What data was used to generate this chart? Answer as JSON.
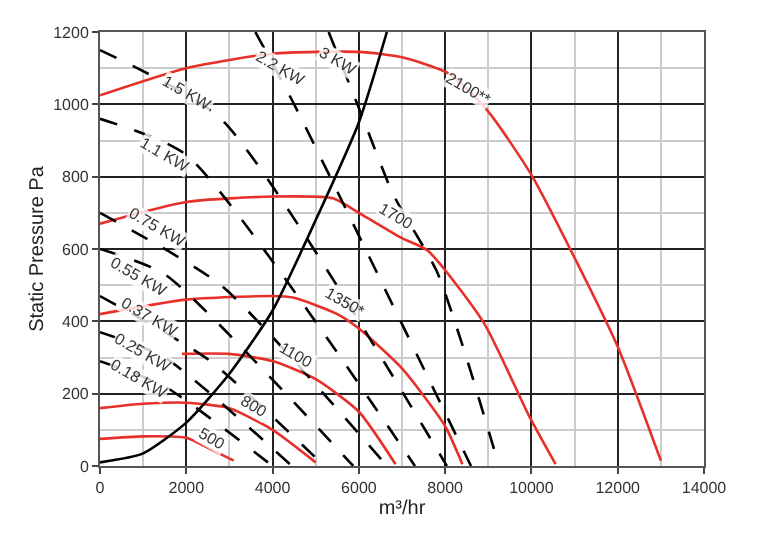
{
  "chart_data": {
    "type": "line",
    "xlabel": "m³/hr",
    "ylabel": "Static Pressure Pa",
    "xlim": [
      0,
      14000
    ],
    "ylim": [
      0,
      1200
    ],
    "xticks": [
      0,
      2000,
      4000,
      6000,
      8000,
      10000,
      12000,
      14000
    ],
    "yticks": [
      0,
      200,
      400,
      600,
      800,
      1000,
      1200
    ],
    "grid": true,
    "marker": "none",
    "series": [
      {
        "color": "#e8302a",
        "line_style": "solid",
        "x": [
          0,
          1000,
          2000,
          2500,
          3100
        ],
        "values": [
          75,
          82,
          78,
          50,
          15
        ]
      },
      {
        "color": "#e8302a",
        "line_style": "solid",
        "x": [
          0,
          1000,
          2000,
          3000,
          4000,
          5000
        ],
        "values": [
          160,
          172,
          175,
          160,
          100,
          10
        ]
      },
      {
        "color": "#e8302a",
        "line_style": "solid",
        "x": [
          1900,
          3000,
          4000,
          5000,
          6000,
          6850
        ],
        "values": [
          310,
          310,
          290,
          240,
          150,
          5
        ]
      },
      {
        "color": "#e8302a",
        "line_style": "solid",
        "x": [
          0,
          2000,
          4000,
          4500,
          5500,
          6000,
          7000,
          8000,
          8400
        ],
        "values": [
          420,
          460,
          470,
          465,
          420,
          380,
          270,
          110,
          5
        ]
      },
      {
        "color": "#e8302a",
        "line_style": "solid",
        "x": [
          0,
          2000,
          4000,
          5400,
          6000,
          7000,
          7600,
          8900,
          9950,
          10560
        ],
        "values": [
          670,
          730,
          745,
          740,
          700,
          630,
          595,
          395,
          137,
          5
        ]
      },
      {
        "color": "#e8302a",
        "line_style": "solid",
        "x": [
          0,
          2000,
          4000,
          6000,
          7000,
          8100,
          9000,
          10000,
          10940,
          12000,
          13000
        ],
        "values": [
          1025,
          1100,
          1140,
          1145,
          1130,
          1084,
          980,
          805,
          590,
          330,
          15
        ]
      },
      {
        "color": "#000000",
        "line_style": "solid",
        "x": [
          0,
          1000,
          2000,
          3000,
          4000,
          5000,
          6000,
          6650
        ],
        "values": [
          10,
          35,
          120,
          255,
          430,
          680,
          950,
          1200
        ]
      },
      {
        "color": "#000000",
        "line_style": "dashed",
        "x": [
          0,
          1500,
          4000
        ],
        "values": [
          290,
          220,
          0
        ]
      },
      {
        "color": "#000000",
        "line_style": "dashed",
        "x": [
          0,
          1500,
          4450
        ],
        "values": [
          370,
          300,
          0
        ]
      },
      {
        "color": "#000000",
        "line_style": "dashed",
        "x": [
          0,
          2500,
          5200
        ],
        "values": [
          470,
          295,
          0
        ]
      },
      {
        "color": "#000000",
        "line_style": "dashed",
        "x": [
          0,
          1500,
          5870
        ],
        "values": [
          600,
          530,
          0
        ]
      },
      {
        "color": "#000000",
        "line_style": "dashed",
        "x": [
          0,
          2800,
          6650
        ],
        "values": [
          700,
          500,
          0
        ]
      },
      {
        "color": "#000000",
        "line_style": "dashed",
        "x": [
          0,
          2000,
          7300
        ],
        "values": [
          960,
          860,
          0
        ]
      },
      {
        "color": "#000000",
        "line_style": "dashed",
        "x": [
          0,
          2800,
          8040
        ],
        "values": [
          1150,
          960,
          0
        ]
      },
      {
        "color": "#000000",
        "line_style": "dashed",
        "x": [
          3600,
          4500,
          8600
        ],
        "values": [
          1200,
          1000,
          0
        ]
      },
      {
        "color": "#000000",
        "line_style": "dashed",
        "x": [
          5300,
          6100,
          6800,
          7800,
          8450,
          9250
        ],
        "values": [
          1200,
          960,
          750,
          540,
          316,
          0
        ]
      }
    ],
    "annotations": [
      {
        "text": "500",
        "x": 2590,
        "y": 74
      },
      {
        "text": "800",
        "x": 3580,
        "y": 163
      },
      {
        "text": "1100",
        "x": 4520,
        "y": 305
      },
      {
        "text": "1350*",
        "x": 5700,
        "y": 453
      },
      {
        "text": "1700",
        "x": 6880,
        "y": 690
      },
      {
        "text": "2100**",
        "x": 8530,
        "y": 1042
      },
      {
        "text": "0.18 KW",
        "x": 900,
        "y": 242
      },
      {
        "text": "0.25 KW",
        "x": 1000,
        "y": 315
      },
      {
        "text": "0.37 KW",
        "x": 1130,
        "y": 410
      },
      {
        "text": "0.55 KW",
        "x": 900,
        "y": 525
      },
      {
        "text": "0.75 KW",
        "x": 1300,
        "y": 660
      },
      {
        "text": "1.1 KW",
        "x": 1500,
        "y": 860
      },
      {
        "text": "1.5 KW",
        "x": 2000,
        "y": 1030
      },
      {
        "text": "2.2 KW",
        "x": 4200,
        "y": 1100
      },
      {
        "text": "3 KW",
        "x": 5500,
        "y": 1120
      }
    ]
  }
}
